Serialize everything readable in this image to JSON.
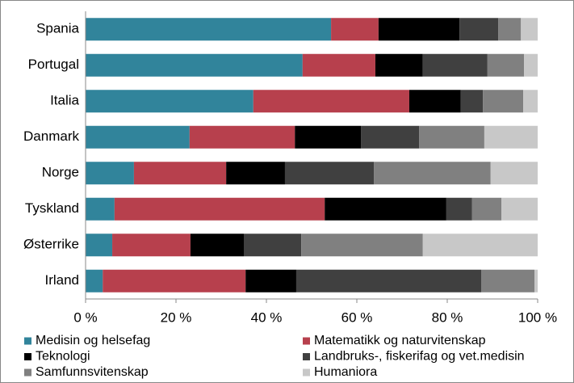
{
  "chart_data": {
    "type": "stacked-bar-horizontal",
    "categories": [
      "Spania",
      "Portugal",
      "Italia",
      "Danmark",
      "Norge",
      "Tyskland",
      "Østerrike",
      "Irland"
    ],
    "series": [
      {
        "name": "Medisin og helsefag",
        "color": "#31849b",
        "values": [
          54.3,
          48.0,
          37.1,
          23.0,
          10.7,
          6.4,
          5.9,
          3.8
        ]
      },
      {
        "name": "Matematikk og naturvitenskap",
        "color": "#b7404d",
        "values": [
          10.5,
          16.1,
          34.5,
          23.3,
          20.4,
          46.5,
          17.3,
          31.6
        ]
      },
      {
        "name": "Teknologi",
        "color": "#000000",
        "values": [
          17.9,
          10.5,
          11.4,
          14.6,
          13.0,
          26.9,
          11.8,
          11.2
        ]
      },
      {
        "name": "Landbruks-, fiskerifag og vet.medisin",
        "color": "#404040",
        "values": [
          8.6,
          14.3,
          4.9,
          12.9,
          19.7,
          5.7,
          12.7,
          40.9
        ]
      },
      {
        "name": "Samfunnsvitenskap",
        "color": "#808080",
        "values": [
          5.0,
          8.1,
          8.9,
          14.4,
          25.8,
          6.5,
          26.9,
          11.8
        ]
      },
      {
        "name": "Humaniora",
        "color": "#c8c8c8",
        "values": [
          3.7,
          3.0,
          3.2,
          11.8,
          10.4,
          8.0,
          25.4,
          0.7
        ]
      }
    ],
    "xlim": [
      0,
      100
    ],
    "xticks": [
      {
        "value": 0,
        "label": "0 %"
      },
      {
        "value": 20,
        "label": "20 %"
      },
      {
        "value": 40,
        "label": "40 %"
      },
      {
        "value": 60,
        "label": "60 %"
      },
      {
        "value": 80,
        "label": "80 %"
      },
      {
        "value": 100,
        "label": "100 %"
      }
    ],
    "grid": false,
    "legend": "bottom"
  }
}
